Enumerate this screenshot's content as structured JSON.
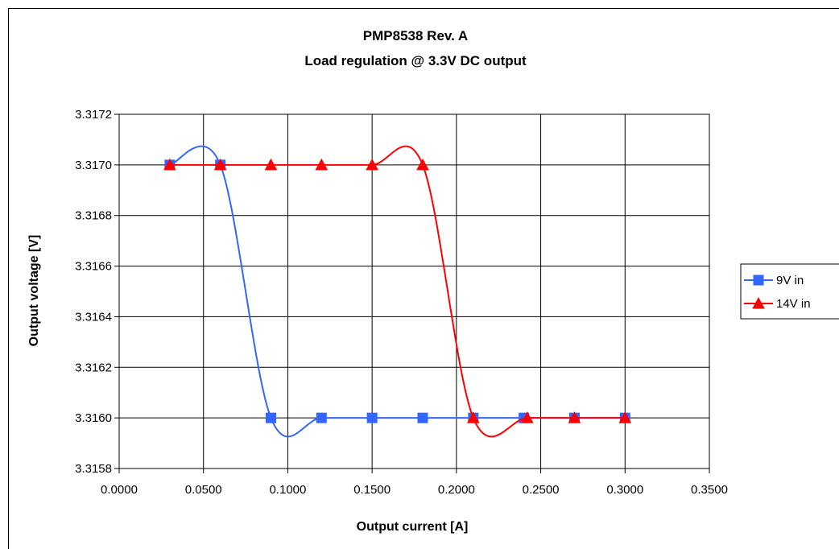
{
  "chart_data": {
    "type": "scatter",
    "title": "PMP8538 Rev. A",
    "subtitle": "Load regulation @ 3.3V DC output",
    "xlabel": "Output current [A]",
    "ylabel": "Output voltage [V]",
    "xlim": [
      0,
      0.35
    ],
    "ylim": [
      3.3158,
      3.3172
    ],
    "x_ticks": [
      "0.0000",
      "0.0500",
      "0.1000",
      "0.1500",
      "0.2000",
      "0.2500",
      "0.3000",
      "0.3500"
    ],
    "y_ticks": [
      "3.3158",
      "3.3160",
      "3.3162",
      "3.3164",
      "3.3166",
      "3.3168",
      "3.3170",
      "3.3172"
    ],
    "grid": true,
    "legend_position": "right",
    "smoothed_lines": true,
    "series": [
      {
        "name": "9V in",
        "color": "#3366ff",
        "marker": "square",
        "x": [
          0.03,
          0.06,
          0.09,
          0.12,
          0.15,
          0.18,
          0.21,
          0.24,
          0.27,
          0.3
        ],
        "y": [
          3.317,
          3.317,
          3.316,
          3.316,
          3.316,
          3.316,
          3.316,
          3.316,
          3.316,
          3.316
        ]
      },
      {
        "name": "14V in",
        "color": "#ff0000",
        "marker": "triangle",
        "x": [
          0.03,
          0.06,
          0.09,
          0.12,
          0.15,
          0.18,
          0.21,
          0.242,
          0.27,
          0.3
        ],
        "y": [
          3.317,
          3.317,
          3.317,
          3.317,
          3.317,
          3.317,
          3.316,
          3.316,
          3.316,
          3.316
        ]
      }
    ]
  }
}
